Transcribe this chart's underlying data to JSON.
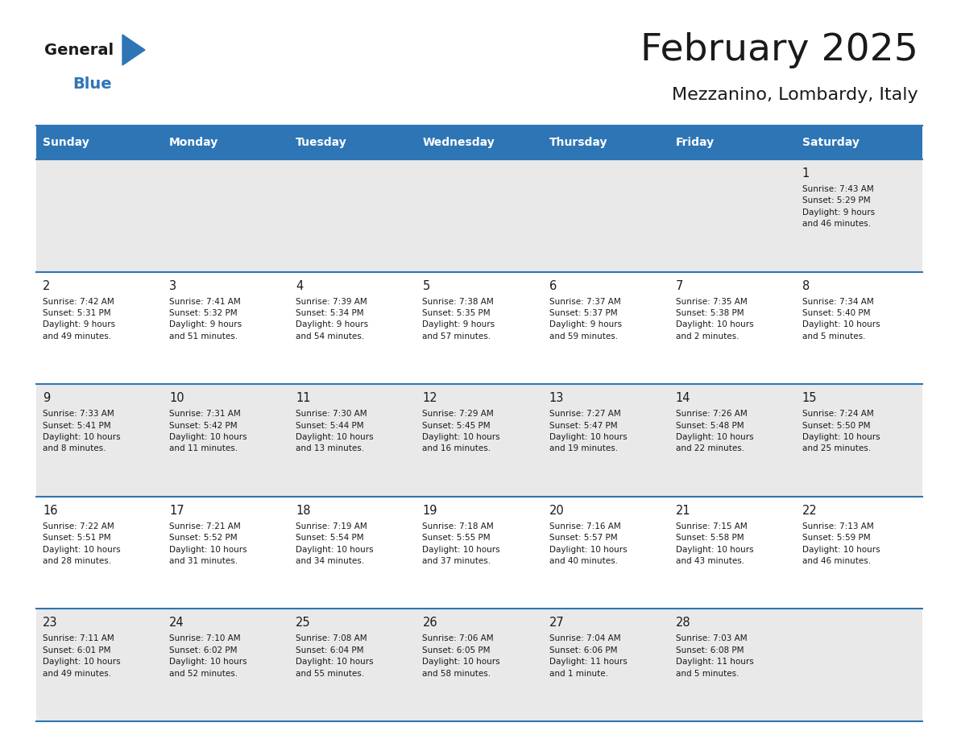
{
  "title": "February 2025",
  "subtitle": "Mezzanino, Lombardy, Italy",
  "header_color": "#2e75b6",
  "header_text_color": "#ffffff",
  "cell_bg_white": "#ffffff",
  "cell_bg_gray": "#e9e9e9",
  "border_color": "#2e75b6",
  "text_color": "#1a1a1a",
  "days_of_week": [
    "Sunday",
    "Monday",
    "Tuesday",
    "Wednesday",
    "Thursday",
    "Friday",
    "Saturday"
  ],
  "weeks": [
    [
      {
        "day": "",
        "info": ""
      },
      {
        "day": "",
        "info": ""
      },
      {
        "day": "",
        "info": ""
      },
      {
        "day": "",
        "info": ""
      },
      {
        "day": "",
        "info": ""
      },
      {
        "day": "",
        "info": ""
      },
      {
        "day": "1",
        "info": "Sunrise: 7:43 AM\nSunset: 5:29 PM\nDaylight: 9 hours\nand 46 minutes."
      }
    ],
    [
      {
        "day": "2",
        "info": "Sunrise: 7:42 AM\nSunset: 5:31 PM\nDaylight: 9 hours\nand 49 minutes."
      },
      {
        "day": "3",
        "info": "Sunrise: 7:41 AM\nSunset: 5:32 PM\nDaylight: 9 hours\nand 51 minutes."
      },
      {
        "day": "4",
        "info": "Sunrise: 7:39 AM\nSunset: 5:34 PM\nDaylight: 9 hours\nand 54 minutes."
      },
      {
        "day": "5",
        "info": "Sunrise: 7:38 AM\nSunset: 5:35 PM\nDaylight: 9 hours\nand 57 minutes."
      },
      {
        "day": "6",
        "info": "Sunrise: 7:37 AM\nSunset: 5:37 PM\nDaylight: 9 hours\nand 59 minutes."
      },
      {
        "day": "7",
        "info": "Sunrise: 7:35 AM\nSunset: 5:38 PM\nDaylight: 10 hours\nand 2 minutes."
      },
      {
        "day": "8",
        "info": "Sunrise: 7:34 AM\nSunset: 5:40 PM\nDaylight: 10 hours\nand 5 minutes."
      }
    ],
    [
      {
        "day": "9",
        "info": "Sunrise: 7:33 AM\nSunset: 5:41 PM\nDaylight: 10 hours\nand 8 minutes."
      },
      {
        "day": "10",
        "info": "Sunrise: 7:31 AM\nSunset: 5:42 PM\nDaylight: 10 hours\nand 11 minutes."
      },
      {
        "day": "11",
        "info": "Sunrise: 7:30 AM\nSunset: 5:44 PM\nDaylight: 10 hours\nand 13 minutes."
      },
      {
        "day": "12",
        "info": "Sunrise: 7:29 AM\nSunset: 5:45 PM\nDaylight: 10 hours\nand 16 minutes."
      },
      {
        "day": "13",
        "info": "Sunrise: 7:27 AM\nSunset: 5:47 PM\nDaylight: 10 hours\nand 19 minutes."
      },
      {
        "day": "14",
        "info": "Sunrise: 7:26 AM\nSunset: 5:48 PM\nDaylight: 10 hours\nand 22 minutes."
      },
      {
        "day": "15",
        "info": "Sunrise: 7:24 AM\nSunset: 5:50 PM\nDaylight: 10 hours\nand 25 minutes."
      }
    ],
    [
      {
        "day": "16",
        "info": "Sunrise: 7:22 AM\nSunset: 5:51 PM\nDaylight: 10 hours\nand 28 minutes."
      },
      {
        "day": "17",
        "info": "Sunrise: 7:21 AM\nSunset: 5:52 PM\nDaylight: 10 hours\nand 31 minutes."
      },
      {
        "day": "18",
        "info": "Sunrise: 7:19 AM\nSunset: 5:54 PM\nDaylight: 10 hours\nand 34 minutes."
      },
      {
        "day": "19",
        "info": "Sunrise: 7:18 AM\nSunset: 5:55 PM\nDaylight: 10 hours\nand 37 minutes."
      },
      {
        "day": "20",
        "info": "Sunrise: 7:16 AM\nSunset: 5:57 PM\nDaylight: 10 hours\nand 40 minutes."
      },
      {
        "day": "21",
        "info": "Sunrise: 7:15 AM\nSunset: 5:58 PM\nDaylight: 10 hours\nand 43 minutes."
      },
      {
        "day": "22",
        "info": "Sunrise: 7:13 AM\nSunset: 5:59 PM\nDaylight: 10 hours\nand 46 minutes."
      }
    ],
    [
      {
        "day": "23",
        "info": "Sunrise: 7:11 AM\nSunset: 6:01 PM\nDaylight: 10 hours\nand 49 minutes."
      },
      {
        "day": "24",
        "info": "Sunrise: 7:10 AM\nSunset: 6:02 PM\nDaylight: 10 hours\nand 52 minutes."
      },
      {
        "day": "25",
        "info": "Sunrise: 7:08 AM\nSunset: 6:04 PM\nDaylight: 10 hours\nand 55 minutes."
      },
      {
        "day": "26",
        "info": "Sunrise: 7:06 AM\nSunset: 6:05 PM\nDaylight: 10 hours\nand 58 minutes."
      },
      {
        "day": "27",
        "info": "Sunrise: 7:04 AM\nSunset: 6:06 PM\nDaylight: 11 hours\nand 1 minute."
      },
      {
        "day": "28",
        "info": "Sunrise: 7:03 AM\nSunset: 6:08 PM\nDaylight: 11 hours\nand 5 minutes."
      },
      {
        "day": "",
        "info": ""
      }
    ]
  ],
  "logo_general_color": "#1a1a1a",
  "logo_blue_color": "#2e75b6",
  "logo_triangle_color": "#2e75b6"
}
